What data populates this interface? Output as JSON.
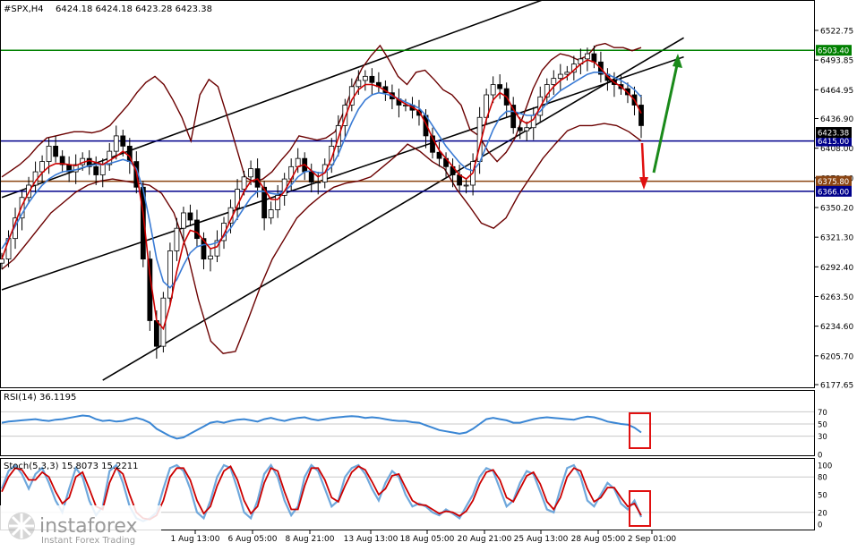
{
  "header": {
    "symbol": "#SPX,H4",
    "ohlc": "6424.18 6424.18 6423.28 6423.38"
  },
  "rsi_header": "RSI(14) 36.1195",
  "stoch_header": "Stoch(5,3,3) 15.8073 15.2211",
  "watermark": {
    "brand": "instaforex",
    "tagline": "Instant Forex Trading"
  },
  "colors": {
    "price": "#000000",
    "ma_fast": "#cc0000",
    "ma_slow": "#3a7bd5",
    "bollinger": "#6b0000",
    "channel": "#000000",
    "resistance_line": "#008000",
    "support_line": "#00008b",
    "level_line": "#8b4513",
    "rsi": "#3a86d4",
    "stoch_main": "#6fa8dc",
    "stoch_signal": "#cc0000",
    "arrow_up": "#1a8a1a",
    "arrow_down": "#e01010",
    "highlight_box": "#e01010",
    "grid": "#c8c8c8"
  },
  "chart_data": [
    {
      "type": "line",
      "panel": "price",
      "y_ticks": [
        "6522.75",
        "6493.85",
        "6464.95",
        "6436.90",
        "6408.00",
        "6379.10",
        "6350.20",
        "6321.30",
        "6292.40",
        "6263.50",
        "6234.60",
        "6205.70",
        "6177.65"
      ],
      "x_ticks": [
        "1 Aug 13:00",
        "6 Aug 05:00",
        "8 Aug 21:00",
        "13 Aug 13:00",
        "18 Aug 05:00",
        "20 Aug 21:00",
        "25 Aug 13:00",
        "28 Aug 05:00",
        "2 Sep 01:00"
      ],
      "ylim": [
        6177.65,
        6538
      ],
      "close_series": [
        6300,
        6320,
        6340,
        6360,
        6372,
        6385,
        6395,
        6410,
        6400,
        6392,
        6385,
        6392,
        6398,
        6390,
        6382,
        6392,
        6405,
        6420,
        6410,
        6395,
        6370,
        6300,
        6240,
        6215,
        6262,
        6308,
        6330,
        6345,
        6338,
        6320,
        6300,
        6303,
        6318,
        6335,
        6350,
        6368,
        6380,
        6388,
        6370,
        6340,
        6348,
        6362,
        6378,
        6390,
        6398,
        6385,
        6375,
        6375,
        6392,
        6410,
        6430,
        6450,
        6468,
        6474,
        6478,
        6472,
        6468,
        6462,
        6456,
        6450,
        6450,
        6445,
        6440,
        6420,
        6404,
        6398,
        6390,
        6382,
        6372,
        6372,
        6395,
        6438,
        6460,
        6470,
        6466,
        6450,
        6428,
        6425,
        6428,
        6440,
        6458,
        6470,
        6476,
        6480,
        6482,
        6490,
        6495,
        6500,
        6492,
        6480,
        6474,
        6470,
        6466,
        6460,
        6450,
        6430
      ],
      "bb_upper": [
        6380,
        6386,
        6392,
        6400,
        6410,
        6418,
        6420,
        6422,
        6424,
        6424,
        6423,
        6425,
        6430,
        6440,
        6450,
        6462,
        6472,
        6478,
        6470,
        6455,
        6438,
        6415,
        6460,
        6475,
        6468,
        6440,
        6410,
        6380,
        6375,
        6378,
        6385,
        6396,
        6406,
        6420,
        6418,
        6416,
        6418,
        6424,
        6444,
        6468,
        6486,
        6498,
        6508,
        6494,
        6478,
        6470,
        6482,
        6484,
        6475,
        6465,
        6460,
        6450,
        6426,
        6420,
        6405,
        6395,
        6404,
        6418,
        6442,
        6466,
        6484,
        6494,
        6500,
        6498,
        6494,
        6498,
        6508,
        6510,
        6506,
        6506,
        6503,
        6506
      ],
      "bb_lower": [
        6290,
        6300,
        6315,
        6330,
        6345,
        6355,
        6365,
        6372,
        6376,
        6378,
        6376,
        6374,
        6372,
        6364,
        6345,
        6310,
        6260,
        6220,
        6208,
        6210,
        6240,
        6272,
        6300,
        6320,
        6340,
        6352,
        6362,
        6370,
        6374,
        6376,
        6380,
        6390,
        6400,
        6412,
        6405,
        6395,
        6388,
        6368,
        6352,
        6335,
        6330,
        6340,
        6362,
        6380,
        6398,
        6412,
        6425,
        6430,
        6430,
        6432,
        6430,
        6424,
        6415
      ],
      "ma_fast_series": [
        6300,
        6318,
        6335,
        6352,
        6365,
        6376,
        6384,
        6390,
        6393,
        6393,
        6392,
        6391,
        6394,
        6396,
        6394,
        6392,
        6396,
        6400,
        6405,
        6400,
        6385,
        6345,
        6285,
        6240,
        6232,
        6255,
        6288,
        6315,
        6328,
        6326,
        6318,
        6310,
        6312,
        6324,
        6338,
        6352,
        6366,
        6376,
        6378,
        6368,
        6358,
        6358,
        6366,
        6378,
        6390,
        6392,
        6386,
        6380,
        6384,
        6398,
        6418,
        6438,
        6455,
        6465,
        6470,
        6470,
        6468,
        6464,
        6460,
        6455,
        6451,
        6448,
        6444,
        6432,
        6418,
        6406,
        6398,
        6390,
        6382,
        6378,
        6384,
        6410,
        6436,
        6455,
        6462,
        6458,
        6446,
        6436,
        6432,
        6436,
        6448,
        6460,
        6468,
        6474,
        6478,
        6484,
        6490,
        6494,
        6492,
        6486,
        6478,
        6472,
        6468,
        6462,
        6455,
        6442
      ],
      "ma_slow_series": [
        6310,
        6320,
        6332,
        6344,
        6355,
        6364,
        6372,
        6378,
        6382,
        6385,
        6386,
        6387,
        6389,
        6391,
        6392,
        6392,
        6393,
        6395,
        6397,
        6395,
        6388,
        6368,
        6336,
        6300,
        6278,
        6272,
        6280,
        6294,
        6306,
        6312,
        6314,
        6314,
        6316,
        6322,
        6330,
        6340,
        6350,
        6360,
        6366,
        6366,
        6364,
        6363,
        6366,
        6372,
        6380,
        6385,
        6386,
        6384,
        6384,
        6390,
        6402,
        6418,
        6433,
        6446,
        6455,
        6460,
        6462,
        6461,
        6459,
        6456,
        6453,
        6450,
        6447,
        6440,
        6430,
        6420,
        6410,
        6402,
        6394,
        6388,
        6386,
        6394,
        6410,
        6426,
        6438,
        6444,
        6444,
        6442,
        6440,
        6440,
        6444,
        6452,
        6458,
        6464,
        6468,
        6472,
        6476,
        6480,
        6482,
        6482,
        6480,
        6477,
        6474,
        6470,
        6465,
        6458
      ],
      "channel_lines": [
        {
          "name": "channel-top",
          "from": [
            0,
            6360
          ],
          "to": [
            96,
            6590
          ]
        },
        {
          "name": "channel-mid",
          "from": [
            0,
            6270
          ],
          "to": [
            96,
            6485
          ]
        },
        {
          "name": "channel-bottom",
          "from": [
            15,
            6182
          ],
          "to": [
            96,
            6495
          ]
        }
      ],
      "levels": [
        {
          "name": "level-6503",
          "value": 6503.4,
          "label": "6503.40",
          "color_key": "resistance_line",
          "label_bg": "#008000"
        },
        {
          "name": "level-6415",
          "value": 6415.0,
          "label": "6415.00",
          "color_key": "support_line",
          "label_bg": "#00008b"
        },
        {
          "name": "level-6375",
          "value": 6375.8,
          "label": "6375.80",
          "color_key": "level_line",
          "label_bg": "#8b4513"
        },
        {
          "name": "level-6366",
          "value": 6366.0,
          "label": "6366.00",
          "color_key": "support_line",
          "label_bg": "#00008b"
        }
      ],
      "current_price": {
        "value": 6423.38,
        "label": "6423.38"
      }
    },
    {
      "type": "line",
      "panel": "rsi",
      "name": "RSI(14)",
      "y_ticks": [
        "70",
        "50",
        "30",
        "0"
      ],
      "ylim": [
        0,
        100
      ],
      "values": [
        52,
        54,
        55,
        56,
        57,
        58,
        56,
        55,
        57,
        58,
        60,
        62,
        64,
        63,
        58,
        55,
        56,
        54,
        55,
        58,
        60,
        57,
        52,
        42,
        36,
        30,
        26,
        28,
        34,
        40,
        46,
        52,
        54,
        52,
        55,
        57,
        58,
        56,
        54,
        58,
        60,
        57,
        55,
        58,
        60,
        61,
        58,
        56,
        58,
        60,
        61,
        62,
        63,
        62,
        60,
        61,
        60,
        58,
        56,
        55,
        55,
        53,
        52,
        48,
        44,
        40,
        38,
        36,
        34,
        36,
        42,
        50,
        58,
        60,
        58,
        56,
        52,
        52,
        55,
        58,
        60,
        61,
        60,
        59,
        58,
        57,
        60,
        62,
        61,
        58,
        54,
        52,
        50,
        49,
        44,
        36
      ]
    },
    {
      "type": "line",
      "panel": "stochastic",
      "name": "Stoch(5,3,3)",
      "y_ticks": [
        "100",
        "80",
        "50",
        "20",
        "0"
      ],
      "ylim": [
        0,
        100
      ],
      "main": [
        60,
        90,
        100,
        85,
        60,
        85,
        95,
        70,
        40,
        20,
        60,
        95,
        80,
        40,
        15,
        30,
        90,
        100,
        70,
        30,
        10,
        5,
        10,
        20,
        60,
        95,
        100,
        90,
        60,
        20,
        10,
        40,
        80,
        100,
        95,
        60,
        20,
        10,
        40,
        85,
        100,
        80,
        40,
        15,
        30,
        80,
        100,
        90,
        60,
        30,
        40,
        80,
        95,
        100,
        85,
        60,
        40,
        70,
        90,
        80,
        50,
        30,
        35,
        30,
        20,
        15,
        25,
        18,
        10,
        30,
        50,
        80,
        95,
        90,
        60,
        30,
        40,
        70,
        90,
        85,
        55,
        25,
        20,
        60,
        95,
        100,
        80,
        40,
        30,
        50,
        70,
        60,
        35,
        25,
        40,
        12
      ],
      "signal": [
        55,
        80,
        95,
        92,
        75,
        75,
        88,
        80,
        55,
        35,
        45,
        80,
        88,
        60,
        30,
        25,
        70,
        95,
        85,
        50,
        20,
        10,
        8,
        15,
        40,
        80,
        95,
        95,
        75,
        40,
        18,
        30,
        65,
        90,
        98,
        75,
        40,
        18,
        30,
        70,
        95,
        90,
        55,
        25,
        25,
        65,
        95,
        95,
        75,
        45,
        38,
        65,
        88,
        98,
        92,
        72,
        50,
        60,
        82,
        85,
        62,
        40,
        33,
        32,
        25,
        18,
        22,
        20,
        14,
        22,
        40,
        68,
        88,
        92,
        75,
        45,
        38,
        60,
        82,
        88,
        68,
        38,
        25,
        45,
        80,
        95,
        90,
        60,
        38,
        45,
        62,
        62,
        45,
        30,
        35,
        15
      ]
    }
  ]
}
